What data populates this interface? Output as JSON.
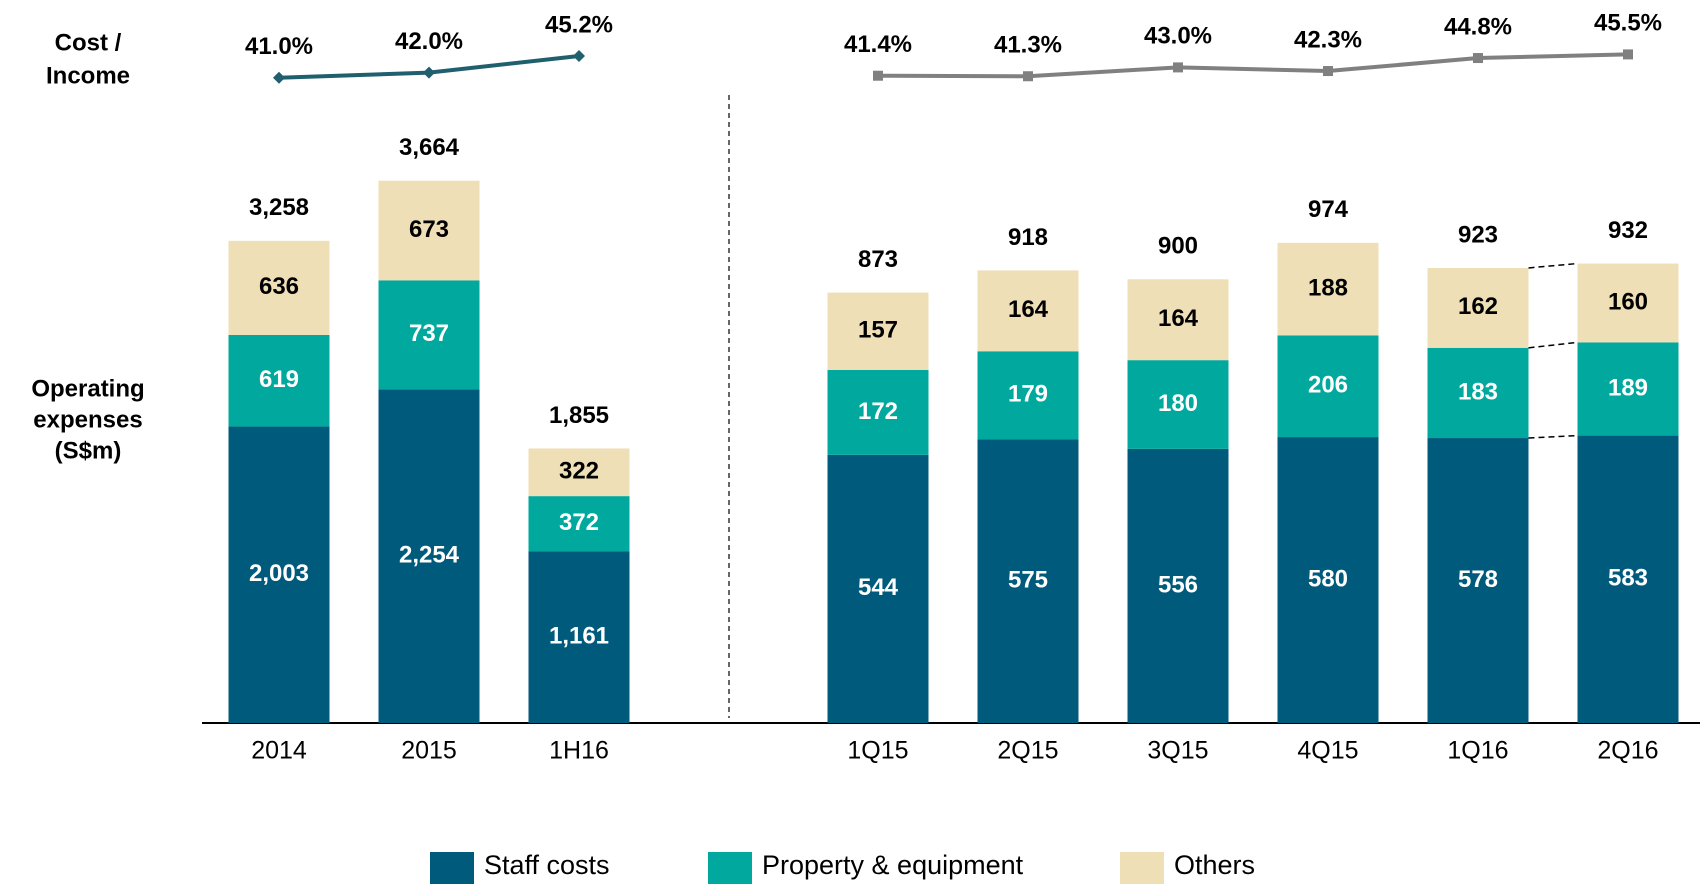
{
  "chart_data": [
    {
      "type": "bar",
      "ylabel": [
        "Operating",
        "expenses",
        "(S$m)"
      ],
      "y2label": [
        "Cost /",
        "Income"
      ],
      "categories": [
        "2014",
        "2015",
        "1H16"
      ],
      "series": [
        {
          "name": "Staff costs",
          "color": "#005a7c",
          "values": [
            2003,
            2254,
            1161
          ],
          "value_labels": [
            "2,003",
            "2,254",
            "1,161"
          ]
        },
        {
          "name": "Property & equipment",
          "color": "#00a89d",
          "values": [
            619,
            737,
            372
          ]
        },
        {
          "name": "Others",
          "color": "#efdfb6",
          "values": [
            636,
            673,
            322
          ]
        },
        {
          "name": "Cost / Income",
          "type": "line",
          "axis": "y2",
          "color": "#1f5f6e",
          "marker": "diamond",
          "values": [
            41.0,
            42.0,
            45.2
          ],
          "value_labels": [
            "41.0%",
            "42.0%",
            "45.2%"
          ]
        }
      ],
      "totals": [
        3258,
        3664,
        1855
      ],
      "total_labels": [
        "3,258",
        "3,664",
        "1,855"
      ],
      "ylim": [
        0,
        4000
      ],
      "y2lim": [
        35,
        50
      ]
    },
    {
      "type": "bar",
      "categories": [
        "1Q15",
        "2Q15",
        "3Q15",
        "4Q15",
        "1Q16",
        "2Q16"
      ],
      "series": [
        {
          "name": "Staff costs",
          "color": "#005a7c",
          "values": [
            544,
            575,
            556,
            580,
            578,
            583
          ]
        },
        {
          "name": "Property & equipment",
          "color": "#00a89d",
          "values": [
            172,
            179,
            180,
            206,
            183,
            189
          ]
        },
        {
          "name": "Others",
          "color": "#efdfb6",
          "values": [
            157,
            164,
            164,
            188,
            162,
            160
          ]
        },
        {
          "name": "Cost / Income",
          "type": "line",
          "axis": "y2",
          "color": "#808080",
          "marker": "square",
          "values": [
            41.4,
            41.3,
            43.0,
            42.3,
            44.8,
            45.5
          ],
          "value_labels": [
            "41.4%",
            "41.3%",
            "43.0%",
            "42.3%",
            "44.8%",
            "45.5%"
          ]
        }
      ],
      "totals": [
        873,
        918,
        900,
        974,
        923,
        932
      ],
      "ylim": [
        0,
        1000
      ],
      "y2lim": [
        35,
        50
      ]
    }
  ]
}
